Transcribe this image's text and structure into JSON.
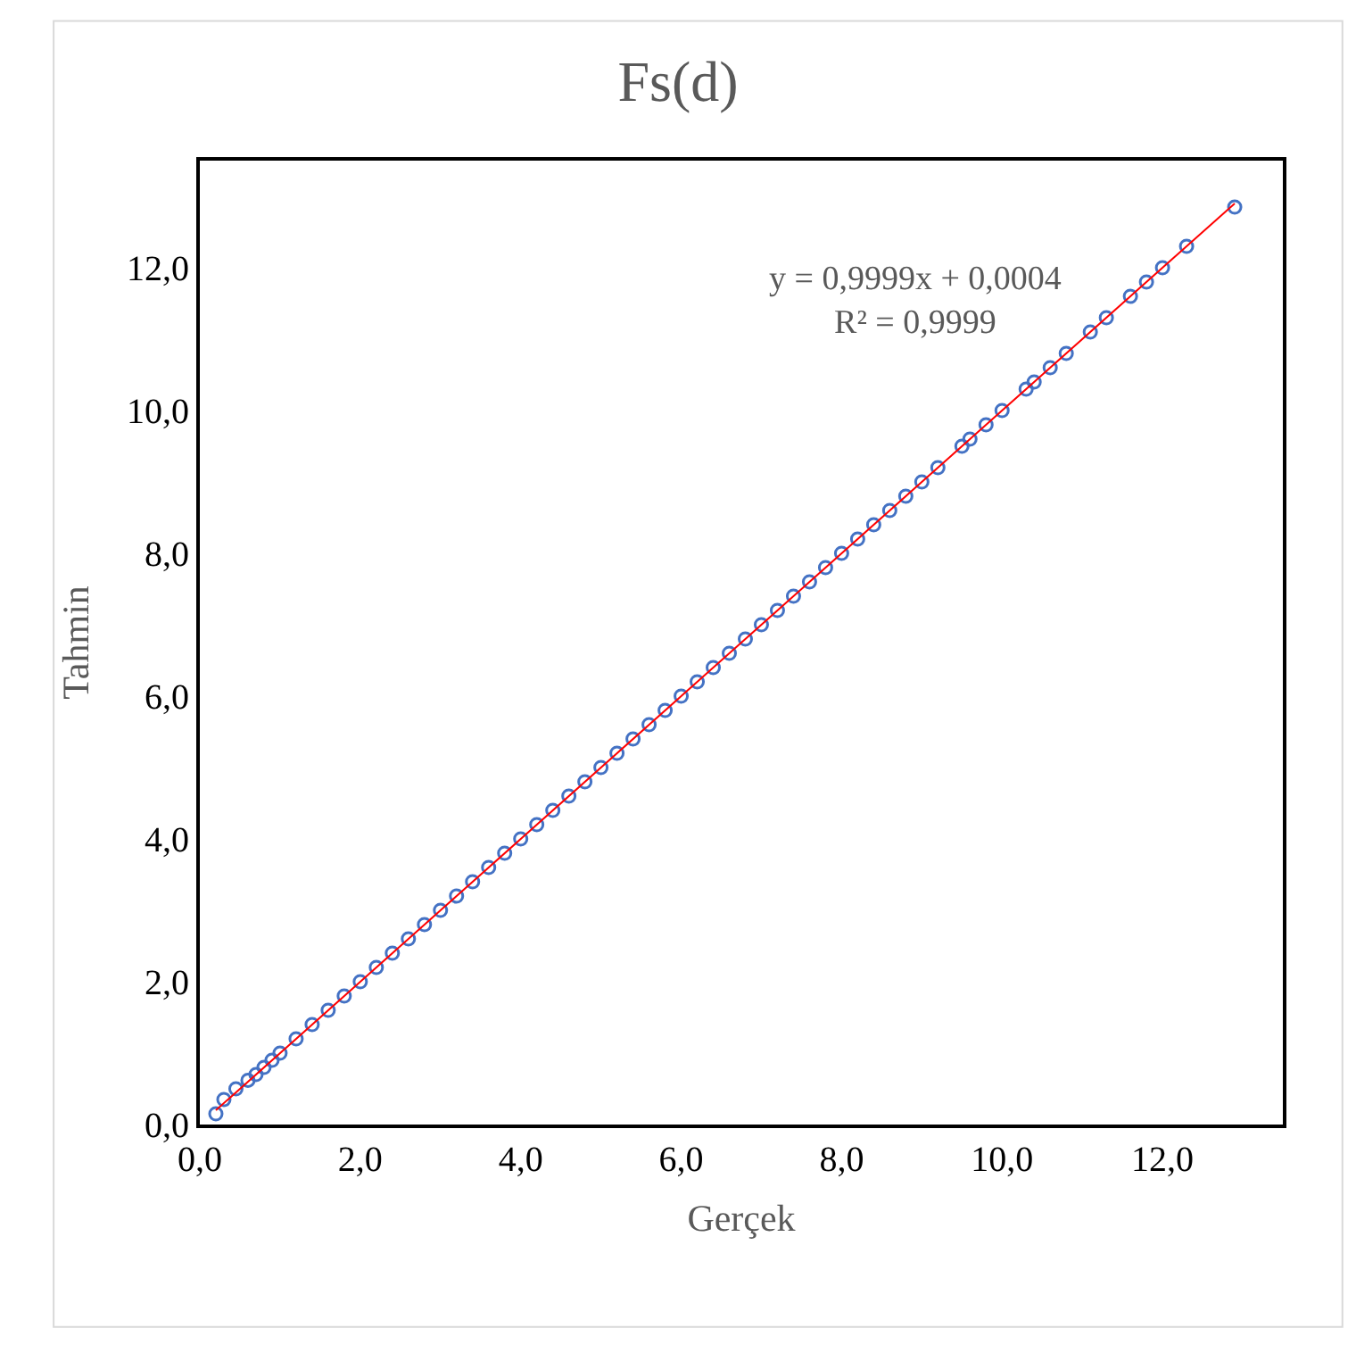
{
  "chart_data": {
    "type": "scatter",
    "title": "Fs(d)",
    "xlabel": "Gerçek",
    "ylabel": "Tahmin",
    "annotations": [
      "y = 0,9999x + 0,0004\nR² = 0,9999"
    ],
    "xlim": [
      0,
      13.5
    ],
    "ylim": [
      0,
      13.5
    ],
    "xticks": [
      {
        "value": 0,
        "label": "0,0"
      },
      {
        "value": 2,
        "label": "2,0"
      },
      {
        "value": 4,
        "label": "4,0"
      },
      {
        "value": 6,
        "label": "6,0"
      },
      {
        "value": 8,
        "label": "8,0"
      },
      {
        "value": 10,
        "label": "10,0"
      },
      {
        "value": 12,
        "label": "12,0"
      }
    ],
    "yticks": [
      {
        "value": 0,
        "label": "0,0"
      },
      {
        "value": 2,
        "label": "2,0"
      },
      {
        "value": 4,
        "label": "4,0"
      },
      {
        "value": 6,
        "label": "6,0"
      },
      {
        "value": 8,
        "label": "8,0"
      },
      {
        "value": 10,
        "label": "10,0"
      },
      {
        "value": 12,
        "label": "12,0"
      }
    ],
    "marker": "circle",
    "series": [
      {
        "color": "#4472c4",
        "x": [
          0.2,
          0.3,
          0.45,
          0.6,
          0.7,
          0.8,
          0.9,
          1.0,
          1.2,
          1.4,
          1.6,
          1.8,
          2.0,
          2.2,
          2.4,
          2.6,
          2.8,
          3.0,
          3.2,
          3.4,
          3.6,
          3.8,
          4.0,
          4.2,
          4.4,
          4.6,
          4.8,
          5.0,
          5.2,
          5.4,
          5.6,
          5.8,
          6.0,
          6.2,
          6.4,
          6.6,
          6.8,
          7.0,
          7.2,
          7.4,
          7.6,
          7.8,
          8.0,
          8.2,
          8.4,
          8.6,
          8.8,
          9.0,
          9.2,
          9.5,
          9.6,
          9.8,
          10.0,
          10.3,
          10.4,
          10.6,
          10.8,
          11.1,
          11.3,
          11.6,
          11.8,
          12.0,
          12.3,
          12.9
        ],
        "values": [
          0.15,
          0.35,
          0.5,
          0.62,
          0.7,
          0.8,
          0.9,
          1.0,
          1.2,
          1.4,
          1.6,
          1.8,
          2.0,
          2.2,
          2.4,
          2.6,
          2.8,
          3.0,
          3.2,
          3.4,
          3.6,
          3.8,
          4.0,
          4.2,
          4.4,
          4.6,
          4.8,
          5.0,
          5.2,
          5.4,
          5.6,
          5.8,
          6.0,
          6.2,
          6.4,
          6.6,
          6.8,
          7.0,
          7.2,
          7.4,
          7.6,
          7.8,
          8.0,
          8.2,
          8.4,
          8.6,
          8.8,
          9.0,
          9.2,
          9.5,
          9.6,
          9.8,
          10.0,
          10.3,
          10.4,
          10.6,
          10.8,
          11.1,
          11.3,
          11.6,
          11.8,
          12.0,
          12.3,
          12.85
        ]
      },
      {
        "type": "line",
        "color": "#ff0000",
        "marker": "none",
        "line_style": "solid",
        "x": [
          0.2,
          12.9
        ],
        "values": [
          0.2,
          12.9
        ]
      }
    ]
  }
}
